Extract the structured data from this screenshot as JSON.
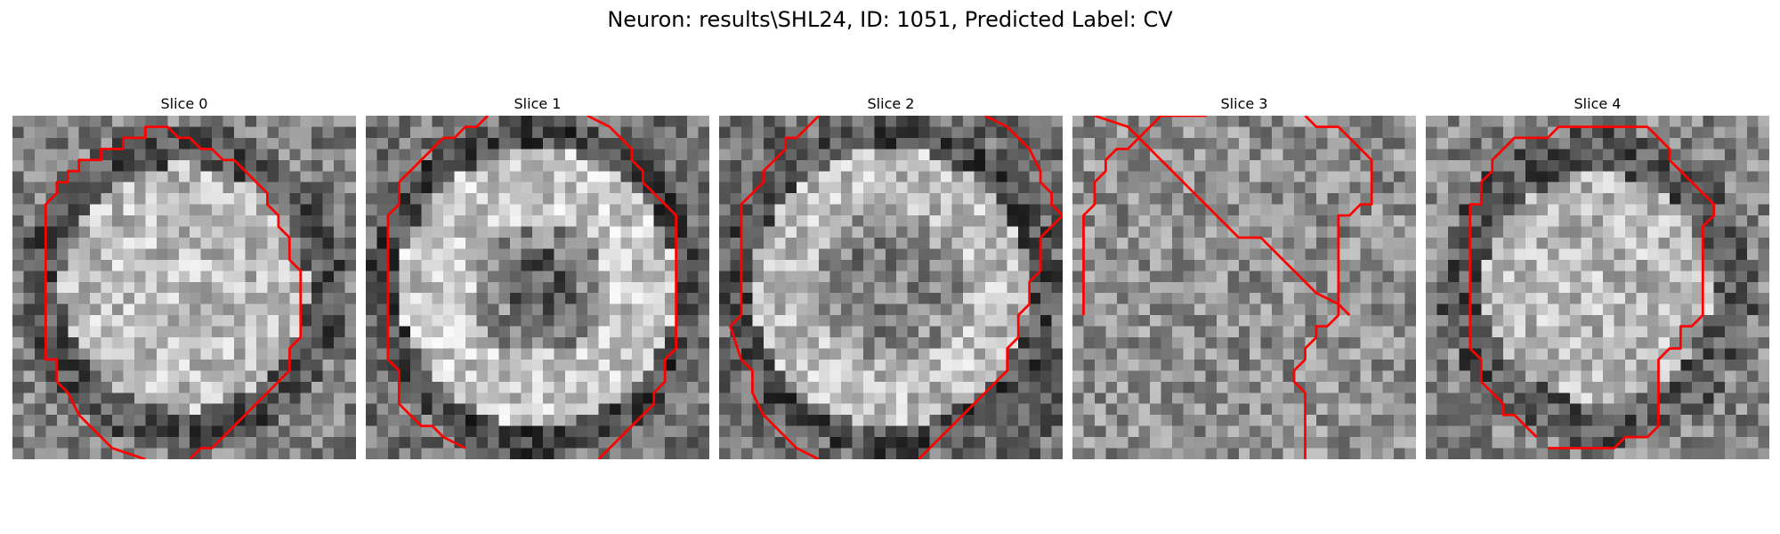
{
  "figure": {
    "title": "Neuron: results\\SHL24, ID: 1051, Predicted Label: CV"
  },
  "panels": [
    {
      "title": "Slice 0",
      "pattern": "disk"
    },
    {
      "title": "Slice 1",
      "pattern": "ring"
    },
    {
      "title": "Slice 2",
      "pattern": "ring-soft"
    },
    {
      "title": "Slice 3",
      "pattern": "noise"
    },
    {
      "title": "Slice 4",
      "pattern": "disk-dark-edge"
    }
  ],
  "colors": {
    "contour": "#ff0000",
    "background": "#ffffff"
  }
}
